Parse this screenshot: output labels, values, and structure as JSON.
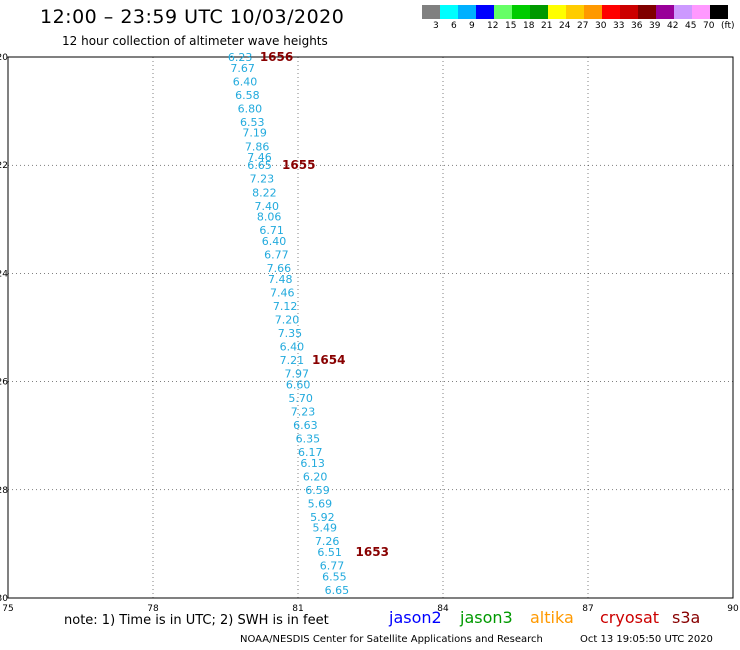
{
  "header": {
    "title": "12:00 – 23:59 UTC 10/03/2020",
    "subtitle": "12 hour collection of altimeter wave heights"
  },
  "legend": {
    "colors": [
      "#808080",
      "#00ffff",
      "#00b0ff",
      "#0000ff",
      "#66ff66",
      "#00cc00",
      "#009900",
      "#ffff00",
      "#ffcc00",
      "#ff9900",
      "#ff0000",
      "#cc0000",
      "#800000",
      "#990099",
      "#cc99ff",
      "#ff99ff",
      "#000000"
    ],
    "labels": [
      "3",
      "6",
      "9",
      "12",
      "15",
      "18",
      "21",
      "24",
      "27",
      "30",
      "33",
      "36",
      "39",
      "42",
      "45",
      "70",
      "(ft)"
    ]
  },
  "map": {
    "lon_range": [
      75,
      90
    ],
    "lat_range": [
      -30,
      -20
    ],
    "x_ticks": [
      75,
      78,
      81,
      84,
      87,
      90
    ],
    "y_ticks": [
      -20,
      -22,
      -24,
      -26,
      -28,
      -30
    ],
    "x_tick_labels": [
      "75",
      "78",
      "81",
      "84",
      "87",
      "90"
    ],
    "y_tick_labels": [
      "-20",
      "-22",
      "-24",
      "-26",
      "-28",
      "-30"
    ],
    "grid": true,
    "track_color": "#22aadd",
    "pass_label_color": "#880000",
    "pass_labels": [
      {
        "text": "1656",
        "lon": 80.21,
        "lat": -20.0
      },
      {
        "text": "1655",
        "lon": 80.67,
        "lat": -22.0
      },
      {
        "text": "1654",
        "lon": 81.29,
        "lat": -25.6
      },
      {
        "text": "1653",
        "lon": 82.19,
        "lat": -29.15
      }
    ],
    "wave_heights": [
      {
        "v": "6.23",
        "lon": 79.55,
        "lat": -20.0
      },
      {
        "v": "7.67",
        "lon": 79.6,
        "lat": -20.2
      },
      {
        "v": "6.40",
        "lon": 79.65,
        "lat": -20.45
      },
      {
        "v": "6.58",
        "lon": 79.7,
        "lat": -20.7
      },
      {
        "v": "6.80",
        "lon": 79.75,
        "lat": -20.95
      },
      {
        "v": "6.53",
        "lon": 79.8,
        "lat": -21.2
      },
      {
        "v": "7.19",
        "lon": 79.85,
        "lat": -21.4
      },
      {
        "v": "7.86",
        "lon": 79.9,
        "lat": -21.65
      },
      {
        "v": "7.46",
        "lon": 79.95,
        "lat": -21.85
      },
      {
        "v": "6.65",
        "lon": 79.95,
        "lat": -22.0
      },
      {
        "v": "7.23",
        "lon": 80.0,
        "lat": -22.25
      },
      {
        "v": "8.22",
        "lon": 80.05,
        "lat": -22.5
      },
      {
        "v": "7.40",
        "lon": 80.1,
        "lat": -22.75
      },
      {
        "v": "8.06",
        "lon": 80.15,
        "lat": -22.95
      },
      {
        "v": "6.71",
        "lon": 80.2,
        "lat": -23.2
      },
      {
        "v": "6.40",
        "lon": 80.25,
        "lat": -23.4
      },
      {
        "v": "6.77",
        "lon": 80.3,
        "lat": -23.65
      },
      {
        "v": "7.66",
        "lon": 80.35,
        "lat": -23.9
      },
      {
        "v": "7.48",
        "lon": 80.38,
        "lat": -24.1
      },
      {
        "v": "7.46",
        "lon": 80.42,
        "lat": -24.35
      },
      {
        "v": "7.12",
        "lon": 80.48,
        "lat": -24.6
      },
      {
        "v": "7.20",
        "lon": 80.52,
        "lat": -24.85
      },
      {
        "v": "7.35",
        "lon": 80.58,
        "lat": -25.1
      },
      {
        "v": "6.40",
        "lon": 80.62,
        "lat": -25.35
      },
      {
        "v": "7.21",
        "lon": 80.62,
        "lat": -25.6
      },
      {
        "v": "7.97",
        "lon": 80.72,
        "lat": -25.85
      },
      {
        "v": "6.60",
        "lon": 80.75,
        "lat": -26.05
      },
      {
        "v": "5.70",
        "lon": 80.8,
        "lat": -26.3
      },
      {
        "v": "7.23",
        "lon": 80.85,
        "lat": -26.55
      },
      {
        "v": "6.63",
        "lon": 80.9,
        "lat": -26.8
      },
      {
        "v": "6.35",
        "lon": 80.95,
        "lat": -27.05
      },
      {
        "v": "6.17",
        "lon": 81.0,
        "lat": -27.3
      },
      {
        "v": "6.13",
        "lon": 81.05,
        "lat": -27.5
      },
      {
        "v": "6.20",
        "lon": 81.1,
        "lat": -27.75
      },
      {
        "v": "6.59",
        "lon": 81.15,
        "lat": -28.0
      },
      {
        "v": "5.69",
        "lon": 81.2,
        "lat": -28.25
      },
      {
        "v": "5.92",
        "lon": 81.25,
        "lat": -28.5
      },
      {
        "v": "5.49",
        "lon": 81.3,
        "lat": -28.7
      },
      {
        "v": "7.26",
        "lon": 81.35,
        "lat": -28.95
      },
      {
        "v": "6.51",
        "lon": 81.4,
        "lat": -29.15
      },
      {
        "v": "6.77",
        "lon": 81.45,
        "lat": -29.4
      },
      {
        "v": "6.55",
        "lon": 81.5,
        "lat": -29.6
      },
      {
        "v": "6.65",
        "lon": 81.55,
        "lat": -29.85
      }
    ]
  },
  "footer": {
    "note": "note: 1) Time is in UTC; 2) SWH is in feet",
    "satellites": [
      {
        "name": "jason2",
        "color": "#0000ff"
      },
      {
        "name": "jason3",
        "color": "#009900"
      },
      {
        "name": "altika",
        "color": "#ff9900"
      },
      {
        "name": "cryosat",
        "color": "#cc0000"
      },
      {
        "name": "s3a",
        "color": "#880000"
      }
    ],
    "credit": "NOAA/NESDIS Center for Satellite Applications and Research",
    "timestamp": "Oct 13 19:05:50 UTC 2020"
  }
}
